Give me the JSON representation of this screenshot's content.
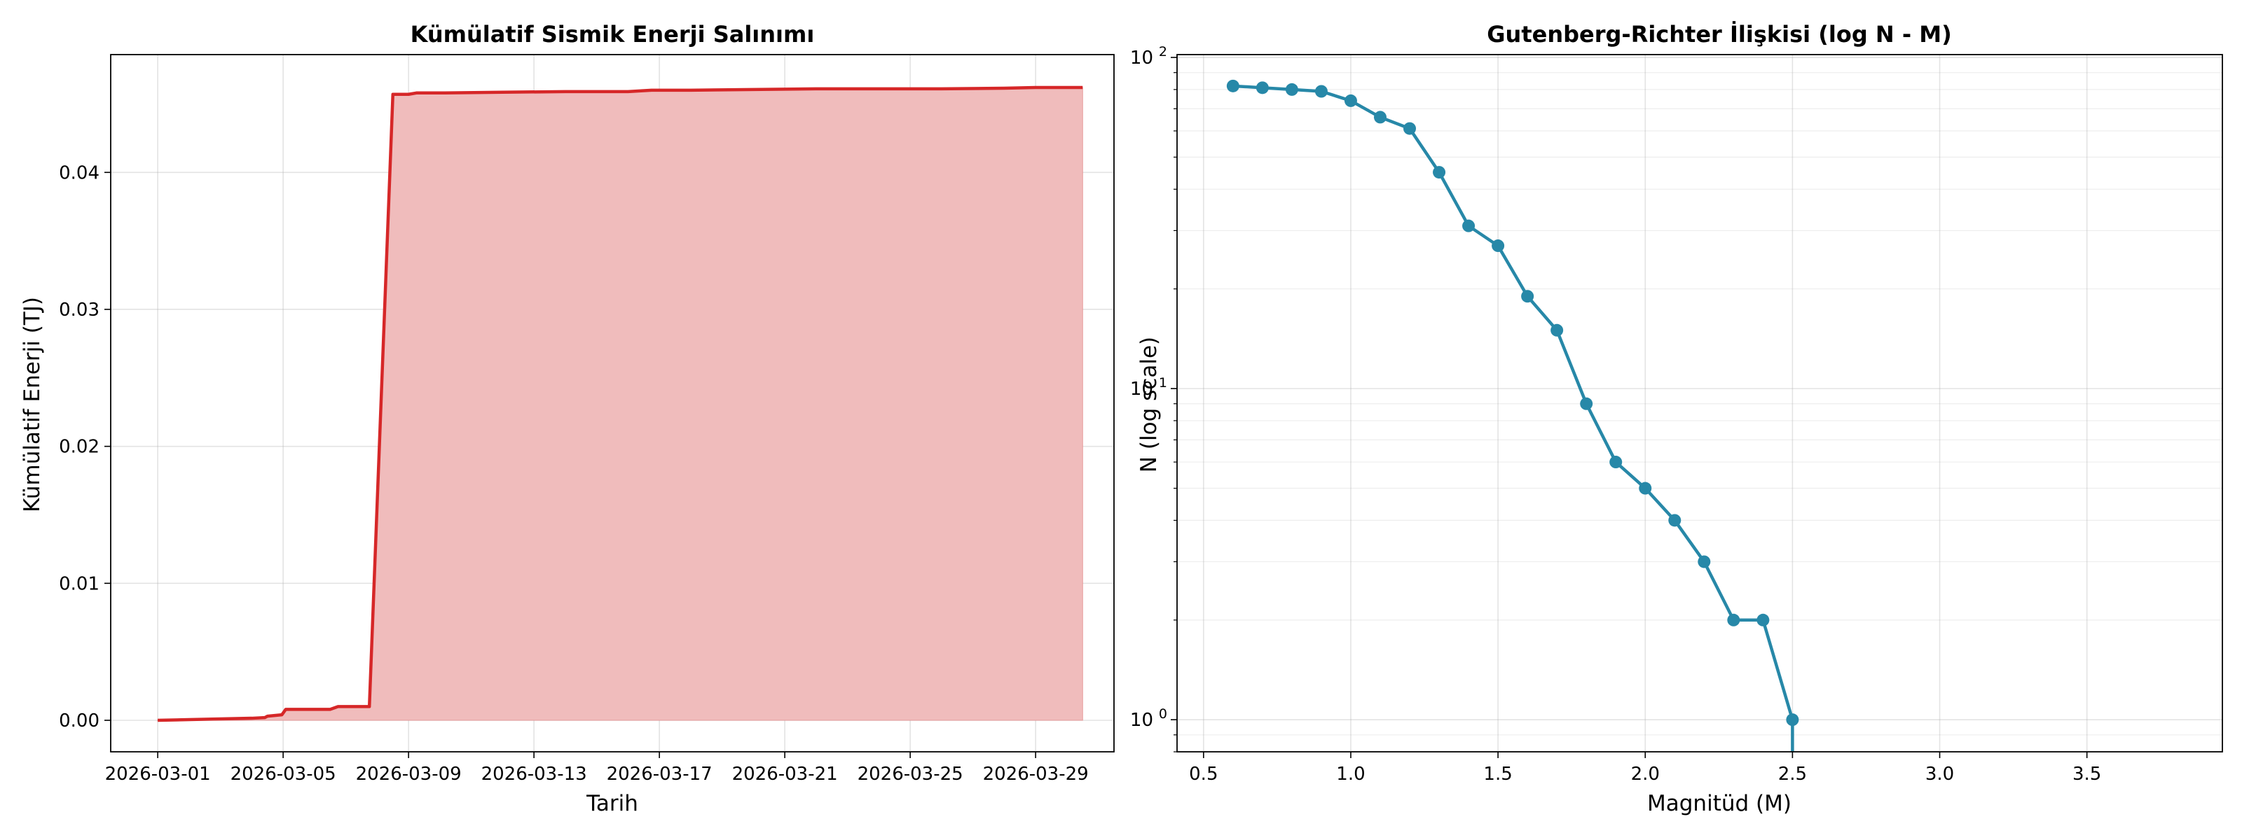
{
  "chart_data": [
    {
      "type": "area",
      "title": "Kümülatif Sismik Enerji Salınımı",
      "xlabel": "Tarih",
      "ylabel": "Kümülatif Enerji (TJ)",
      "x_ticks": [
        "2026-03-01",
        "2026-03-05",
        "2026-03-09",
        "2026-03-13",
        "2026-03-17",
        "2026-03-21",
        "2026-03-25",
        "2026-03-29"
      ],
      "y_ticks": [
        "0.00",
        "0.01",
        "0.02",
        "0.03",
        "0.04"
      ],
      "xlim": [
        "2025-02-27T12:00",
        "2026-03-31T12:00"
      ],
      "ylim": [
        -0.0023,
        0.0486
      ],
      "grid": true,
      "colors": {
        "line": "#d62728",
        "fill": "#f0bcbc"
      },
      "series": [
        {
          "x": [
            "2026-03-01T00:00",
            "2026-03-02T00:00",
            "2026-03-03T00:00",
            "2026-03-04T00:00",
            "2026-03-04T10:00",
            "2026-03-04T12:00",
            "2026-03-04T23:00",
            "2026-03-05T02:00",
            "2026-03-06T00:00",
            "2026-03-06T12:00",
            "2026-03-06T18:00",
            "2026-03-07T12:00",
            "2026-03-07T18:00",
            "2026-03-08T12:00",
            "2026-03-09T00:00",
            "2026-03-09T06:00",
            "2026-03-10T00:00",
            "2026-03-12T00:00",
            "2026-03-14T00:00",
            "2026-03-16T00:00",
            "2026-03-16T18:00",
            "2026-03-18T00:00",
            "2026-03-20T00:00",
            "2026-03-22T00:00",
            "2026-03-24T00:00",
            "2026-03-26T00:00",
            "2026-03-28T00:00",
            "2026-03-29T00:00",
            "2026-03-30T12:00"
          ],
          "values": [
            0.0,
            5e-05,
            0.0001,
            0.00015,
            0.0002,
            0.0003,
            0.0004,
            0.0008,
            0.0008,
            0.0008,
            0.001,
            0.001,
            0.001,
            0.0457,
            0.0457,
            0.0458,
            0.0458,
            0.04585,
            0.0459,
            0.0459,
            0.046,
            0.046,
            0.04605,
            0.0461,
            0.0461,
            0.0461,
            0.04615,
            0.0462,
            0.0462
          ]
        }
      ]
    },
    {
      "type": "line",
      "title": "Gutenberg-Richter İlişkisi (log N - M)",
      "xlabel": "Magnitüd (M)",
      "ylabel": "N (log scale)",
      "x_ticks": [
        "0.5",
        "1.0",
        "1.5",
        "2.0",
        "2.5",
        "3.0",
        "3.5"
      ],
      "y_ticks": [
        {
          "base": "10",
          "exp": "0"
        },
        {
          "base": "10",
          "exp": "1"
        },
        {
          "base": "10",
          "exp": "2"
        }
      ],
      "yscale": "log",
      "xlim": [
        0.41,
        3.96
      ],
      "ylim": [
        0.8,
        102
      ],
      "grid": true,
      "colors": {
        "line": "#2788a8"
      },
      "series": [
        {
          "x": [
            0.6,
            0.7,
            0.8,
            0.9,
            1.0,
            1.1,
            1.2,
            1.3,
            1.4,
            1.5,
            1.6,
            1.7,
            1.8,
            1.9,
            2.0,
            2.1,
            2.2,
            2.3,
            2.4,
            2.5
          ],
          "values": [
            82,
            81,
            80,
            79,
            74,
            66,
            61,
            45,
            31,
            27,
            19,
            15,
            9,
            6,
            5,
            4,
            3,
            2,
            2,
            1
          ]
        }
      ]
    }
  ]
}
